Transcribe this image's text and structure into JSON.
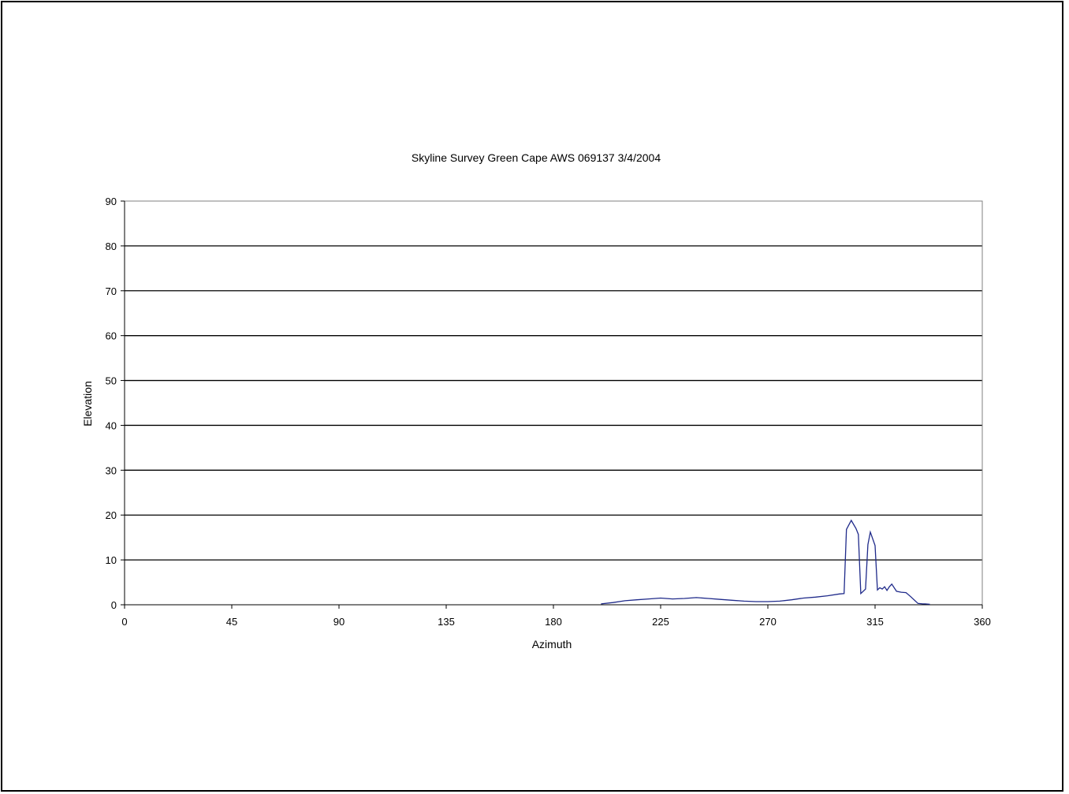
{
  "chart_data": {
    "type": "line",
    "title": "Skyline Survey Green Cape AWS 069137 3/4/2004",
    "xlabel": "Azimuth",
    "ylabel": "Elevation",
    "xlim": [
      0,
      360
    ],
    "ylim": [
      0,
      90
    ],
    "xticks": [
      0,
      45,
      90,
      135,
      180,
      225,
      270,
      315,
      360
    ],
    "yticks": [
      0,
      10,
      20,
      30,
      40,
      50,
      60,
      70,
      80,
      90
    ],
    "grid": "horizontal",
    "legend": "none",
    "line_color": "#1f2a8a",
    "series": [
      {
        "x": [
          200,
          205,
          210,
          215,
          220,
          225,
          230,
          235,
          240,
          245,
          250,
          255,
          260,
          265,
          270,
          275,
          280,
          285,
          290,
          295,
          300,
          302,
          303,
          305,
          307,
          308,
          309,
          311,
          312,
          313,
          315,
          316,
          317,
          318,
          319,
          320,
          321,
          322,
          324,
          326,
          328,
          330,
          333,
          335,
          336,
          338
        ],
        "y": [
          0.2,
          0.5,
          0.9,
          1.1,
          1.3,
          1.5,
          1.3,
          1.4,
          1.6,
          1.4,
          1.2,
          1.0,
          0.8,
          0.7,
          0.7,
          0.8,
          1.1,
          1.5,
          1.7,
          2.0,
          2.4,
          2.5,
          16.8,
          18.8,
          17.0,
          15.7,
          2.5,
          3.5,
          13.4,
          16.2,
          13.2,
          3.3,
          3.8,
          3.5,
          4.0,
          3.2,
          4.0,
          4.6,
          3.0,
          2.8,
          2.7,
          1.8,
          0.3,
          0.2,
          0.2,
          0.1
        ]
      }
    ]
  }
}
